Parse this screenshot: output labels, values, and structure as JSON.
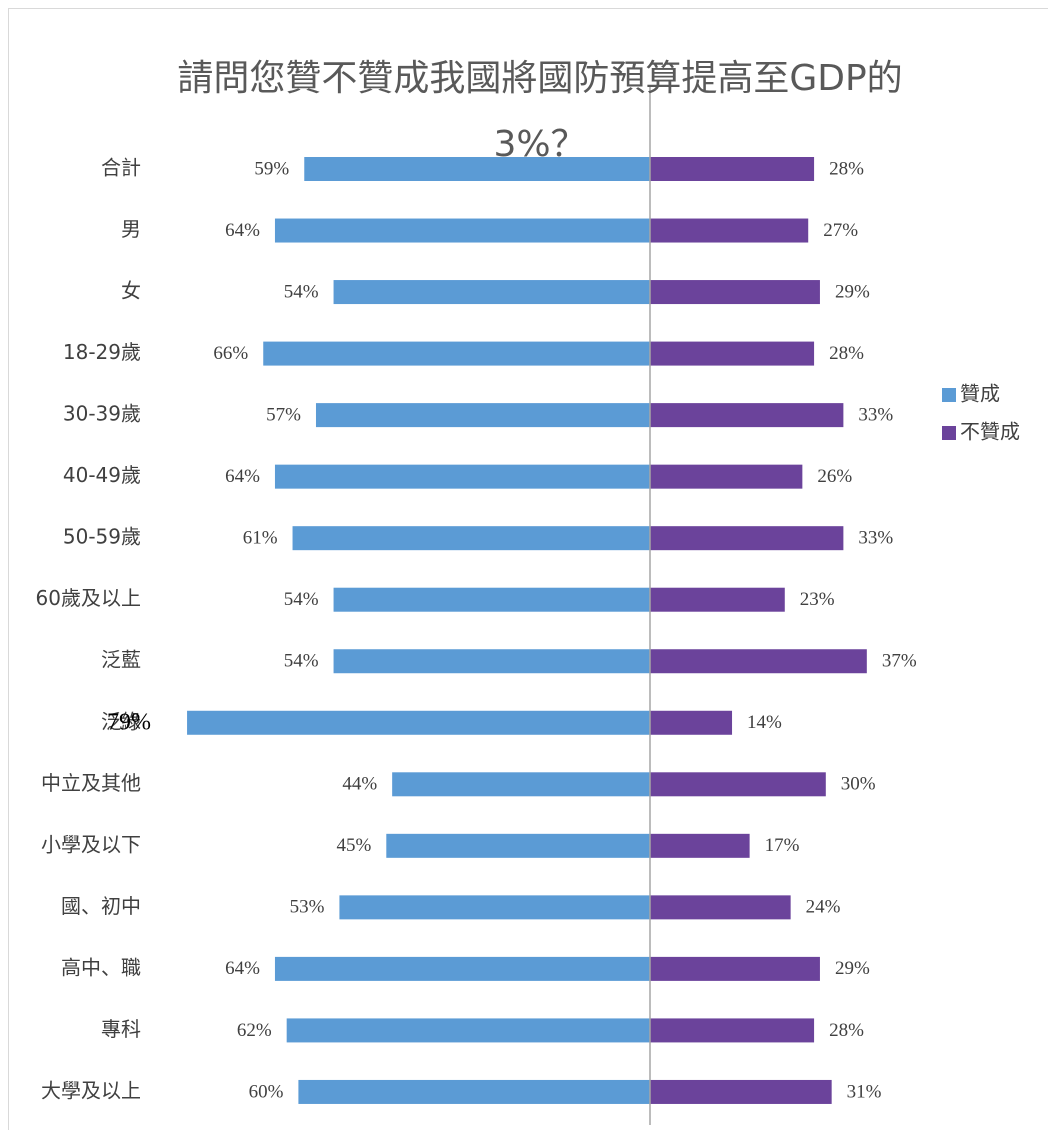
{
  "chart_data": {
    "type": "diverging_bar",
    "title": "請問您贊不贊成我國將國防預算提高至GDP的3%？",
    "categories": [
      "合計",
      "男",
      "女",
      "18-29歲",
      "30-39歲",
      "40-49歲",
      "50-59歲",
      "60歲及以上",
      "泛藍",
      "泛綠",
      "中立及其他",
      "小學及以下",
      "國、初中",
      "高中、職",
      "專科",
      "大學及以上"
    ],
    "series": [
      {
        "name": "贊成",
        "color": "#5b9bd5",
        "values": [
          59,
          64,
          54,
          66,
          57,
          64,
          61,
          54,
          54,
          79,
          44,
          45,
          53,
          64,
          62,
          60
        ],
        "value_labels": [
          "59%",
          "64%",
          "54%",
          "66%",
          "57%",
          "64%",
          "61%",
          "54%",
          "54%",
          "79%",
          "44%",
          "45%",
          "53%",
          "64%",
          "62%",
          "60%"
        ]
      },
      {
        "name": "不贊成",
        "color": "#6b439b",
        "values": [
          28,
          27,
          29,
          28,
          33,
          26,
          33,
          23,
          37,
          14,
          30,
          17,
          24,
          29,
          28,
          31
        ],
        "value_labels": [
          "28%",
          "27%",
          "29%",
          "28%",
          "33%",
          "26%",
          "33%",
          "23%",
          "37%",
          "14%",
          "30%",
          "17%",
          "24%",
          "29%",
          "28%",
          "31%"
        ]
      }
    ],
    "legend": "right"
  }
}
